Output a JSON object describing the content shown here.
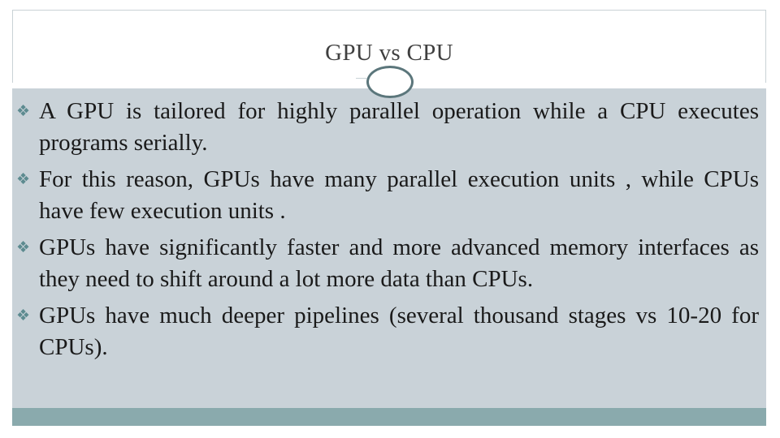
{
  "slide": {
    "title": "GPU vs CPU",
    "bullet_icon": "diamond-bullet-icon",
    "bullets": [
      "A GPU is tailored for highly parallel operation while a CPU executes programs serially.",
      "For this reason, GPUs have many parallel execution units , while CPUs have few execution units .",
      "GPUs have significantly faster and more advanced memory interfaces as they need to shift around a lot more data than CPUs.",
      "GPUs have much deeper pipelines (several thousand stages vs 10-20 for CPUs)."
    ]
  },
  "colors": {
    "content_background": "#c9d2d8",
    "footer_bar": "#8aaaad",
    "bullet_accent": "#5d8b90",
    "circle_border": "#5b767b",
    "title_text": "#3f3f3f"
  }
}
